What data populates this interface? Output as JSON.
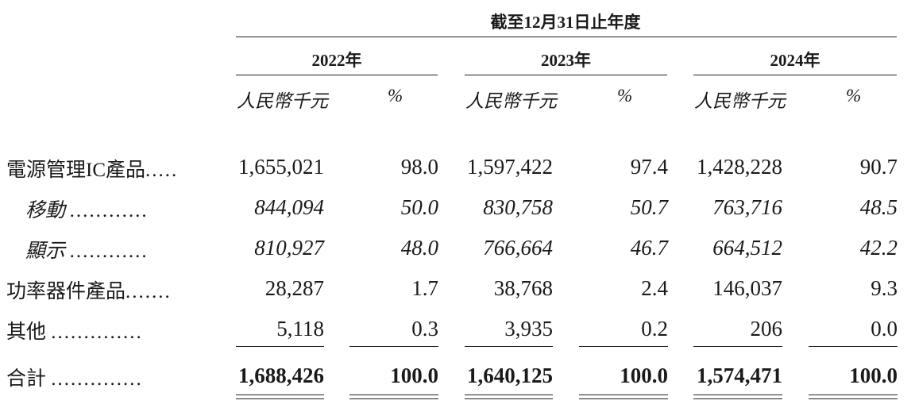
{
  "header": {
    "period": "截至12月31日止年度",
    "years": [
      "2022年",
      "2023年",
      "2024年"
    ],
    "unit_amount": "人民幣千元",
    "unit_pct": "%"
  },
  "rows": [
    {
      "label": "電源管理IC產品",
      "dots": ".....",
      "style": "normal",
      "values": [
        "1,655,021",
        "98.0",
        "1,597,422",
        "97.4",
        "1,428,228",
        "90.7"
      ]
    },
    {
      "label": "移動",
      "dots": "............",
      "style": "italic",
      "values": [
        "844,094",
        "50.0",
        "830,758",
        "50.7",
        "763,716",
        "48.5"
      ]
    },
    {
      "label": "顯示",
      "dots": "............",
      "style": "italic",
      "values": [
        "810,927",
        "48.0",
        "766,664",
        "46.7",
        "664,512",
        "42.2"
      ]
    },
    {
      "label": "功率器件產品",
      "dots": ".......",
      "style": "normal",
      "values": [
        "28,287",
        "1.7",
        "38,768",
        "2.4",
        "146,037",
        "9.3"
      ]
    },
    {
      "label": "其他",
      "dots": "..............",
      "style": "normal",
      "values": [
        "5,118",
        "0.3",
        "3,935",
        "0.2",
        "206",
        "0.0"
      ]
    },
    {
      "label": "合計",
      "dots": "..............",
      "style": "bold",
      "values": [
        "1,688,426",
        "100.0",
        "1,640,125",
        "100.0",
        "1,574,471",
        "100.0"
      ]
    }
  ]
}
